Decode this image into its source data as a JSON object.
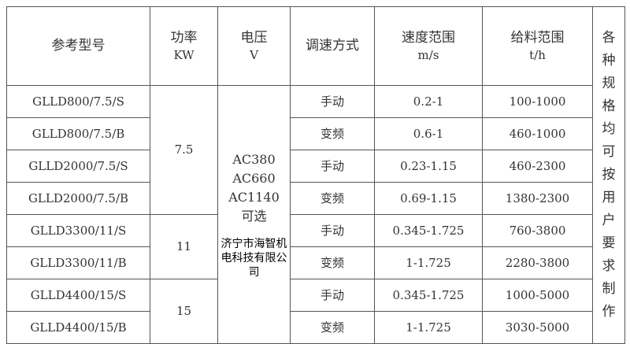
{
  "header": {
    "model": "参考型号",
    "power": "功率",
    "power_unit": "KW",
    "voltage": "电压",
    "voltage_unit": "V",
    "mode": "调速方式",
    "speed": "速度范围",
    "speed_unit": "m/s",
    "feed": "给料范围",
    "feed_unit": "t/h"
  },
  "side_note": "各种规格均可按用户要求制作",
  "voltage_value": [
    "AC380",
    "AC660",
    "AC1140",
    "可选"
  ],
  "power_groups": [
    "7.5",
    "11",
    "15"
  ],
  "rows": [
    {
      "model": "GLLD800/7.5/S",
      "mode": "手动",
      "speed": "0.2-1",
      "feed": "100-1000"
    },
    {
      "model": "GLLD800/7.5/B",
      "mode": "变频",
      "speed": "0.6-1",
      "feed": "460-1000"
    },
    {
      "model": "GLLD2000/7.5/S",
      "mode": "手动",
      "speed": "0.23-1.15",
      "feed": "460-2300"
    },
    {
      "model": "GLLD2000/7.5/B",
      "mode": "变频",
      "speed": "0.69-1.15",
      "feed": "1380-2300"
    },
    {
      "model": "GLLD3300/11/S",
      "mode": "手动",
      "speed": "0.345-1.725",
      "feed": "760-3800"
    },
    {
      "model": "GLLD3300/11/B",
      "mode": "变频",
      "speed": "1-1.725",
      "feed": "2280-3800"
    },
    {
      "model": "GLLD4400/15/S",
      "mode": "手动",
      "speed": "0.345-1.725",
      "feed": "1000-5000"
    },
    {
      "model": "GLLD4400/15/B",
      "mode": "变频",
      "speed": "1-1.725",
      "feed": "3030-5000"
    }
  ],
  "watermark": "济宁市海智机电科技有限公司"
}
